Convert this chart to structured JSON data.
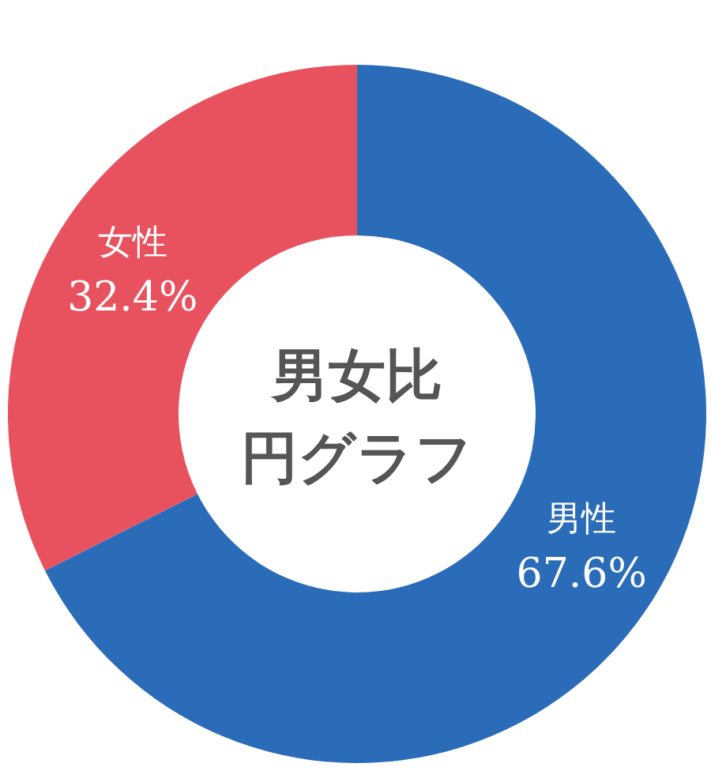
{
  "chart_data": {
    "type": "donut",
    "title": "男女比",
    "subtitle": "円グラフ",
    "categories": [
      "男性",
      "女性"
    ],
    "values": [
      67.6,
      32.4
    ],
    "colors": [
      "#2b6cb8",
      "#e8525f"
    ],
    "value_labels": [
      "67.6%",
      "32.4%"
    ]
  }
}
